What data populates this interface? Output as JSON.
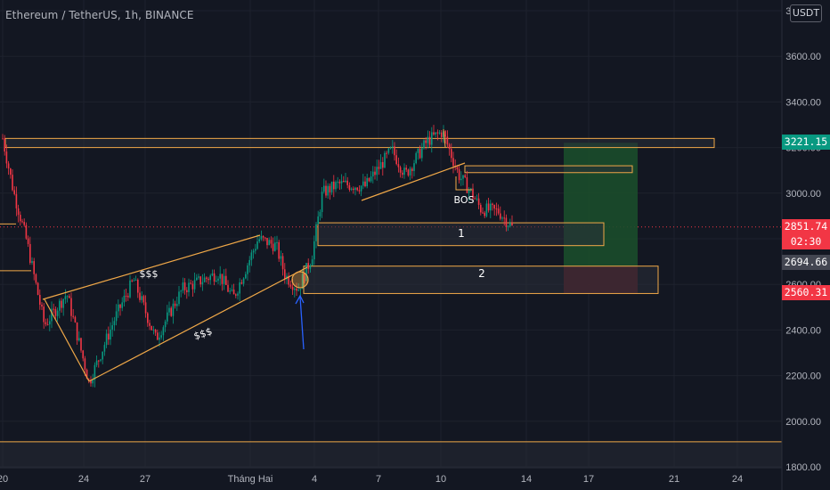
{
  "title": "Ethereum / TetherUS, 1h, BINANCE",
  "currency_button": "USDT",
  "y_axis": {
    "ticks": [
      "3800.00",
      "3600.00",
      "3400.00",
      "3200.00",
      "3000.00",
      "2800.00",
      "2600.00",
      "2400.00",
      "2200.00",
      "2000.00",
      "1800.00"
    ],
    "values": [
      3800,
      3600,
      3400,
      3200,
      3000,
      2800,
      2600,
      2400,
      2200,
      2000,
      1800
    ]
  },
  "x_axis": {
    "ticks": [
      "20",
      "24",
      "27",
      "Tháng Hai",
      "4",
      "7",
      "10",
      "14",
      "17",
      "21",
      "24"
    ]
  },
  "price_tags": [
    {
      "label": "3221.15",
      "color": "#089981",
      "value": 3221.15
    },
    {
      "label": "2851.74",
      "color": "#f23645",
      "value": 2851.74,
      "sub": "02:30"
    },
    {
      "label": "2694.66",
      "color": "#434651",
      "value": 2694.66
    },
    {
      "label": "2560.31",
      "color": "#f23645",
      "value": 2560.31
    }
  ],
  "annotations": {
    "zone1_label": "1",
    "zone2_label": "2",
    "bos_label": "BOS",
    "liq_upper": "$$$",
    "liq_lower": "$$$"
  },
  "colors": {
    "background": "#131722",
    "bull": "#089981",
    "bear": "#f23645",
    "drawing": "#f0a848",
    "zone_fill": "#2a2e39",
    "tp_fill": "#1b4d2b",
    "sl_fill": "#5a1f27",
    "arrow": "#2962ff"
  },
  "chart_data": {
    "type": "candlestick",
    "symbol": "Ethereum / TetherUS",
    "timeframe": "1h",
    "exchange": "BINANCE",
    "ylim": [
      1800,
      3800
    ],
    "price_path_key_points": [
      {
        "label": "start",
        "price": 3240
      },
      {
        "label": "low",
        "price": 2170
      },
      {
        "label": "swing high",
        "price": 2800
      },
      {
        "label": "swing low",
        "price": 2590
      },
      {
        "label": "high",
        "price": 3280
      },
      {
        "label": "BOS",
        "price": 3010
      },
      {
        "label": "last",
        "price": 2851.74
      }
    ],
    "levels": {
      "top_zone": [
        3200,
        3240
      ],
      "supply_zone": [
        3090,
        3120
      ],
      "zone_1": [
        2770,
        2870
      ],
      "zone_2": [
        2560,
        2680
      ],
      "bottom_line": 1910,
      "long_entry": 2680,
      "long_target": 3221.15,
      "long_stop": 2560.31
    }
  }
}
